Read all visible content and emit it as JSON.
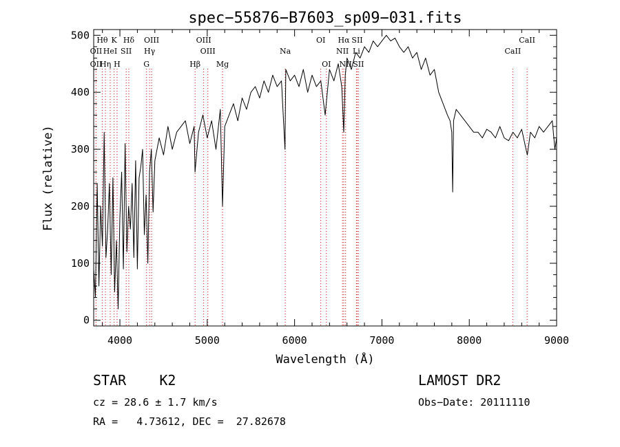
{
  "chart_data": {
    "type": "line",
    "title": "spec−55876−B7603_sp09−031.fits",
    "xlabel": "Wavelength (Å)",
    "ylabel": "Flux (relative)",
    "xlim": [
      3700,
      9000
    ],
    "ylim": [
      -10,
      510
    ],
    "xticks": [
      4000,
      5000,
      6000,
      7000,
      8000,
      9000
    ],
    "yticks": [
      0,
      100,
      200,
      300,
      400,
      500
    ],
    "grid": false,
    "line_color": "#000000",
    "marker_color": "#cc0000",
    "series": [
      {
        "x": [
          3700,
          3720,
          3740,
          3760,
          3780,
          3800,
          3820,
          3840,
          3860,
          3880,
          3900,
          3920,
          3940,
          3960,
          3980,
          4000,
          4020,
          4040,
          4060,
          4080,
          4100,
          4120,
          4140,
          4160,
          4180,
          4200,
          4220,
          4240,
          4260,
          4280,
          4300,
          4320,
          4340,
          4360,
          4380,
          4400,
          4450,
          4500,
          4550,
          4600,
          4650,
          4700,
          4750,
          4800,
          4850,
          4860,
          4900,
          4950,
          5000,
          5050,
          5100,
          5150,
          5175,
          5200,
          5250,
          5300,
          5350,
          5400,
          5450,
          5500,
          5550,
          5600,
          5650,
          5700,
          5750,
          5800,
          5850,
          5890,
          5900,
          5950,
          6000,
          6050,
          6100,
          6150,
          6200,
          6250,
          6300,
          6350,
          6400,
          6450,
          6500,
          6540,
          6563,
          6580,
          6600,
          6650,
          6700,
          6750,
          6800,
          6850,
          6900,
          6950,
          7000,
          7050,
          7100,
          7150,
          7200,
          7250,
          7300,
          7350,
          7400,
          7450,
          7500,
          7550,
          7600,
          7650,
          7700,
          7750,
          7780,
          7800,
          7810,
          7820,
          7850,
          7900,
          7950,
          8000,
          8050,
          8100,
          8150,
          8200,
          8250,
          8300,
          8350,
          8400,
          8450,
          8500,
          8550,
          8600,
          8650,
          8665,
          8700,
          8750,
          8800,
          8850,
          8900,
          8950,
          8980,
          9000
        ],
        "y": [
          90,
          40,
          240,
          60,
          200,
          130,
          330,
          110,
          160,
          240,
          80,
          250,
          50,
          140,
          20,
          180,
          260,
          90,
          310,
          120,
          200,
          160,
          240,
          110,
          280,
          90,
          250,
          270,
          300,
          150,
          220,
          100,
          260,
          300,
          190,
          280,
          320,
          290,
          340,
          300,
          330,
          340,
          350,
          310,
          340,
          260,
          330,
          360,
          320,
          350,
          300,
          370,
          200,
          340,
          360,
          380,
          350,
          390,
          370,
          400,
          410,
          390,
          420,
          400,
          430,
          410,
          420,
          300,
          440,
          420,
          430,
          410,
          440,
          400,
          430,
          410,
          420,
          360,
          440,
          420,
          450,
          410,
          330,
          430,
          460,
          440,
          470,
          460,
          480,
          470,
          490,
          480,
          490,
          500,
          490,
          495,
          480,
          470,
          480,
          460,
          470,
          440,
          460,
          430,
          440,
          400,
          380,
          360,
          350,
          330,
          225,
          350,
          370,
          360,
          350,
          340,
          330,
          330,
          320,
          335,
          330,
          320,
          340,
          320,
          315,
          330,
          320,
          335,
          300,
          290,
          330,
          320,
          340,
          330,
          340,
          350,
          300,
          320
        ]
      }
    ],
    "line_markers": [
      {
        "label": "Hθ",
        "wavelength": 3798,
        "row": 1
      },
      {
        "label": "K",
        "wavelength": 3934,
        "row": 1
      },
      {
        "label": "Hδ",
        "wavelength": 4102,
        "row": 1
      },
      {
        "label": "OIII",
        "wavelength": 4363,
        "row": 1
      },
      {
        "label": "OIII",
        "wavelength": 4959,
        "row": 1
      },
      {
        "label": "OI",
        "wavelength": 6300,
        "row": 1
      },
      {
        "label": "Hα",
        "wavelength": 6563,
        "row": 1
      },
      {
        "label": "SII",
        "wavelength": 6717,
        "row": 1
      },
      {
        "label": "CaII",
        "wavelength": 8662,
        "row": 1
      },
      {
        "label": "OII",
        "wavelength": 3727,
        "row": 2
      },
      {
        "label": "HeI",
        "wavelength": 3889,
        "row": 2
      },
      {
        "label": "SII",
        "wavelength": 4072,
        "row": 2
      },
      {
        "label": "Hγ",
        "wavelength": 4340,
        "row": 2
      },
      {
        "label": "OIII",
        "wavelength": 5007,
        "row": 2
      },
      {
        "label": "Na",
        "wavelength": 5893,
        "row": 2
      },
      {
        "label": "NII",
        "wavelength": 6548,
        "row": 2
      },
      {
        "label": "Li",
        "wavelength": 6708,
        "row": 2
      },
      {
        "label": "CaII",
        "wavelength": 8498,
        "row": 2
      },
      {
        "label": "OII",
        "wavelength": 3727,
        "row": 3
      },
      {
        "label": "Hη",
        "wavelength": 3835,
        "row": 3
      },
      {
        "label": "H",
        "wavelength": 3968,
        "row": 3
      },
      {
        "label": "G",
        "wavelength": 4305,
        "row": 3
      },
      {
        "label": "Hβ",
        "wavelength": 4861,
        "row": 3
      },
      {
        "label": "Mg",
        "wavelength": 5175,
        "row": 3
      },
      {
        "label": "OI",
        "wavelength": 6364,
        "row": 3
      },
      {
        "label": "NII",
        "wavelength": 6584,
        "row": 3
      },
      {
        "label": "SII",
        "wavelength": 6731,
        "row": 3
      }
    ]
  },
  "info": {
    "class": "STAR    K2",
    "survey": "LAMOST DR2",
    "cz": "cz = 28.6 ± 1.7 km/s",
    "obs_date": "Obs−Date: 20111110",
    "radec": "RA =   4.73612, DEC =  27.82678"
  }
}
